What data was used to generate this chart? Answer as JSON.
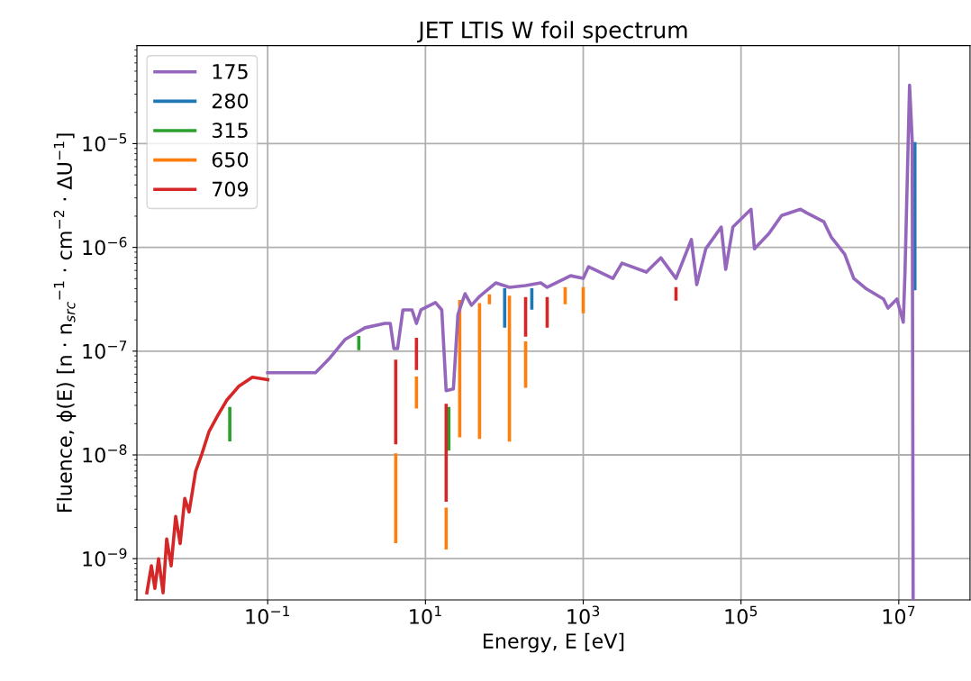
{
  "chart_data": {
    "type": "line",
    "title": "JET LTIS W foil spectrum",
    "xlabel": "Energy, E [eV]",
    "ylabel": "Fluence, ϕ(E) [n · n$_{src}$$^{−1}$ · cm$^{−2}$ · ΔU$^{−1}$]",
    "log": "xy",
    "grid": true,
    "legend": "top left",
    "xlim": [
      0.0022,
      80000000
    ],
    "ylim": [
      4e-10,
      8.8e-05
    ],
    "xticks": [
      {
        "value": 0.1,
        "label": "10$^{−1}$"
      },
      {
        "value": 10,
        "label": "10$^{1}$"
      },
      {
        "value": 1000,
        "label": "10$^{3}$"
      },
      {
        "value": 100000,
        "label": "10$^{5}$"
      },
      {
        "value": 10000000,
        "label": "10$^{7}$"
      }
    ],
    "yticks": [
      {
        "value": 1e-09,
        "label": "10$^{−9}$"
      },
      {
        "value": 1e-08,
        "label": "10$^{−8}$"
      },
      {
        "value": 1e-07,
        "label": "10$^{−7}$"
      },
      {
        "value": 1e-06,
        "label": "10$^{−6}$"
      },
      {
        "value": 1e-05,
        "label": "10$^{−5}$"
      }
    ],
    "series": [
      {
        "name": "175",
        "color": "#9467bd",
        "x": [
          0.1,
          0.183,
          0.404,
          0.598,
          0.962,
          1.71,
          3.06,
          3.58,
          3.98,
          4.2,
          4.43,
          5.18,
          6.75,
          7.69,
          8.77,
          13.4,
          16.1,
          18.3,
          22.6,
          25.8,
          31.8,
          38.3,
          48.5,
          77.8,
          116,
          186,
          290,
          349,
          692,
          1000,
          1170,
          2380,
          3100,
          6310,
          9620,
          15000,
          23500,
          27500,
          35800,
          56100,
          64000,
          78900,
          134000,
          148000,
          226000,
          327000,
          568000,
          682000,
          1120000,
          1390000,
          2060000,
          2690000,
          3780000,
          6400000,
          7290000,
          9480000,
          11400000,
          12000000,
          13700000,
          14800000,
          15200000
        ],
        "values": [
          6.2e-08,
          6.2e-08,
          6.2e-08,
          8.4e-08,
          1.3e-07,
          1.68e-07,
          1.85e-07,
          1.85e-07,
          1.06e-07,
          1.06e-07,
          1.06e-07,
          2.5e-07,
          2.5e-07,
          1.85e-07,
          2.5e-07,
          2.94e-07,
          2.5e-07,
          4.16e-08,
          4.32e-08,
          2.26e-07,
          3.58e-07,
          2.77e-07,
          3.37e-07,
          4.55e-07,
          4.12e-07,
          4.29e-07,
          4.55e-07,
          4.12e-07,
          5.33e-07,
          5.02e-07,
          6.52e-07,
          5.02e-07,
          7.05e-07,
          5.78e-07,
          7.94e-07,
          5.02e-07,
          1.19e-06,
          4.38e-07,
          9.7e-07,
          1.57e-06,
          6.14e-07,
          1.57e-06,
          2.33e-06,
          9.7e-07,
          1.36e-06,
          2.03e-06,
          2.33e-06,
          2.15e-06,
          1.77e-06,
          1.26e-06,
          8.61e-07,
          5.02e-07,
          4.04e-07,
          3.18e-07,
          2.6e-07,
          3.18e-07,
          1.9e-07,
          5.9e-07,
          3.66e-05,
          1.06e-05,
          4e-10
        ]
      },
      {
        "name": "280",
        "color": "#1f77b4",
        "x": [
          101,
          101,
          null,
          223,
          223,
          null,
          16000000,
          16000000
        ],
        "values": [
          3.9e-07,
          1.75e-07,
          null,
          3.9e-07,
          2.61e-07,
          null,
          1e-05,
          4e-07
        ]
      },
      {
        "name": "315",
        "color": "#2ca02c",
        "x": [
          0.0331,
          0.0331,
          null,
          1.43,
          1.43,
          null,
          19.8,
          19.8
        ],
        "values": [
          2.8e-08,
          1.4e-08,
          null,
          1.35e-07,
          1.06e-07,
          null,
          2.8e-08,
          1.14e-08
        ]
      },
      {
        "name": "650",
        "color": "#ff7f0e",
        "x": [
          4.2,
          4.2,
          null,
          7.69,
          7.69,
          null,
          18.3,
          18.3,
          null,
          27.2,
          27.2,
          null,
          48.5,
          48.5,
          null,
          64.7,
          64.7,
          null,
          116,
          116,
          null,
          186,
          186,
          null,
          590,
          590,
          null,
          1000,
          1000
        ],
        "values": [
          1e-08,
          1.46e-09,
          null,
          5.5e-08,
          2.9e-08,
          null,
          3e-09,
          1.27e-09,
          null,
          3e-07,
          1.53e-08,
          null,
          2.8e-07,
          1.48e-08,
          null,
          3.4e-07,
          2.94e-07,
          null,
          3.3e-07,
          1.39e-08,
          null,
          1.2e-07,
          4.59e-08,
          null,
          4e-07,
          2.94e-07,
          null,
          4e-07,
          2.4e-07
        ]
      },
      {
        "name": "709",
        "color": "#d62728",
        "x": [
          0.00294,
          0.00336,
          0.00372,
          0.00414,
          0.00472,
          0.00525,
          0.00598,
          0.00682,
          0.00778,
          0.00889,
          0.0101,
          0.0122,
          0.0147,
          0.0181,
          0.0235,
          0.0306,
          0.0431,
          0.064,
          0.1,
          null,
          4.2,
          4.2,
          null,
          7.69,
          7.69,
          null,
          18.3,
          18.3,
          null,
          186,
          186,
          null,
          349,
          349,
          null,
          15000,
          15000
        ],
        "values": [
          4.69e-10,
          8.53e-10,
          5.18e-10,
          1e-09,
          4.69e-10,
          1.55e-09,
          8.53e-10,
          2.55e-09,
          1.4e-09,
          3.8e-09,
          2.82e-09,
          6.92e-09,
          1.03e-08,
          1.69e-08,
          2.43e-08,
          3.4e-08,
          4.59e-08,
          5.61e-08,
          5.3e-08,
          null,
          8e-08,
          1.31e-08,
          null,
          1.3e-07,
          6.84e-08,
          null,
          3e-08,
          3.66e-09,
          null,
          3.2e-07,
          1.43e-07,
          null,
          3.2e-07,
          1.75e-07,
          null,
          4e-07,
          3.18e-07
        ]
      }
    ]
  }
}
